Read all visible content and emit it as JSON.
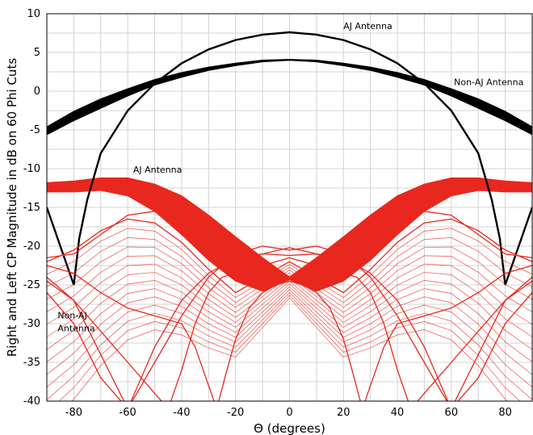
{
  "chart_data": {
    "type": "line",
    "title": "",
    "xlabel": "Θ (degrees)",
    "ylabel": "Right and Left CP Magnitude in dB on 60 Phi Cuts",
    "xlim": [
      -90,
      90
    ],
    "ylim": [
      -40,
      10
    ],
    "x_ticks": [
      "-80",
      "-60",
      "-40",
      "-20",
      "0",
      "20",
      "40",
      "60",
      "80"
    ],
    "x_tick_values": [
      -80,
      -60,
      -40,
      -20,
      0,
      20,
      40,
      60,
      80
    ],
    "y_ticks": [
      "10",
      "5",
      "0",
      "-5",
      "-10",
      "-15",
      "-20",
      "-25",
      "-30",
      "-35",
      "-40"
    ],
    "y_tick_values": [
      10,
      5,
      0,
      -5,
      -10,
      -15,
      -20,
      -25,
      -30,
      -35,
      -40
    ],
    "grid": true,
    "colors": {
      "rhcp": "#000000",
      "lhcp": "#e8281e"
    },
    "annotations": [
      {
        "text": "AJ Antenna",
        "x": 20,
        "y": 8
      },
      {
        "text": "Non-AJ Antenna",
        "x": 61,
        "y": 0.8
      },
      {
        "text": "AJ Antenna",
        "x": -58,
        "y": -10.5
      },
      {
        "text": "Non-AJ",
        "x": -86,
        "y": -29.3
      },
      {
        "text": "Antenna",
        "x": -86,
        "y": -31
      }
    ],
    "series": [
      {
        "x": [
          -90,
          -80,
          -70,
          -60,
          -50,
          -40,
          -30,
          -20,
          -10,
          0,
          10,
          20,
          30,
          40,
          50,
          60,
          70,
          80,
          90
        ],
        "y_upper": [
          -4.6,
          -2.6,
          -1.0,
          0.3,
          1.5,
          2.4,
          3.1,
          3.6,
          4.0,
          4.1,
          4.0,
          3.6,
          3.1,
          2.4,
          1.5,
          0.3,
          -1.0,
          -2.6,
          -4.6
        ],
        "y_lower": [
          -5.6,
          -3.8,
          -2.2,
          -0.6,
          0.8,
          1.8,
          2.7,
          3.3,
          3.8,
          4.0,
          3.8,
          3.3,
          2.7,
          1.8,
          0.8,
          -0.6,
          -2.2,
          -3.8,
          -5.6
        ]
      },
      {
        "x": [
          -90,
          -85,
          -80,
          -78,
          -75,
          -70,
          -60,
          -50,
          -40,
          -30,
          -20,
          -10,
          0,
          10,
          20,
          30,
          40,
          50,
          60,
          70,
          75,
          78,
          80,
          85,
          90
        ],
        "y": [
          -15,
          -20,
          -25,
          -19,
          -14,
          -8,
          -2.5,
          1.0,
          3.6,
          5.4,
          6.6,
          7.3,
          7.6,
          7.3,
          6.6,
          5.4,
          3.6,
          1.0,
          -2.5,
          -8,
          -14,
          -19,
          -25,
          -20,
          -15
        ]
      },
      {
        "x": [
          -90,
          -80,
          -70,
          -60,
          -50,
          -40,
          -30,
          -20,
          -10,
          0,
          10,
          20,
          30,
          40,
          50,
          60,
          70,
          80,
          90
        ],
        "y_upper": [
          -11.8,
          -11.6,
          -11.2,
          -11.2,
          -12.0,
          -13.5,
          -16.0,
          -18.8,
          -21.5,
          -24.0,
          -21.5,
          -18.8,
          -16.0,
          -13.5,
          -12.0,
          -11.2,
          -11.2,
          -11.6,
          -11.8
        ],
        "y_lower": [
          -13.0,
          -13.0,
          -12.8,
          -13.5,
          -15.5,
          -18.5,
          -21.8,
          -24.5,
          -25.8,
          -24.3,
          -25.8,
          -24.5,
          -21.8,
          -18.5,
          -15.5,
          -13.5,
          -12.8,
          -13.0,
          -13.0
        ]
      },
      {
        "x": [
          -90,
          -80,
          -70,
          -60,
          -50,
          -40,
          -30,
          -20,
          -10,
          0,
          10,
          20,
          30,
          40,
          50,
          60,
          70,
          80,
          90
        ],
        "y": [
          -21.5,
          -21.0,
          -18.5,
          -16.0,
          -15.5,
          -17.5,
          -20.5,
          -22.0,
          -21.0,
          -20.2,
          -21.0,
          -22.0,
          -20.5,
          -17.5,
          -15.5,
          -16.0,
          -18.5,
          -21.0,
          -21.5
        ]
      },
      {
        "x": [
          -90,
          -80,
          -70,
          -60,
          -50,
          -45,
          -40,
          -35,
          -30,
          -25,
          -20,
          -10,
          0,
          10,
          20,
          25,
          30,
          35,
          40,
          45,
          50,
          60,
          70,
          80,
          90
        ],
        "y": [
          -24.5,
          -27.0,
          -31.0,
          -35.0,
          -39.0,
          -41.0,
          -36.0,
          -30.0,
          -26.0,
          -24.0,
          -23.5,
          -22.5,
          -21.5,
          -22.5,
          -23.5,
          -24.0,
          -26.0,
          -30.0,
          -36.0,
          -41.0,
          -39.0,
          -35.0,
          -31.0,
          -27.0,
          -24.5
        ]
      },
      {
        "x": [
          -90,
          -80,
          -70,
          -60,
          -50,
          -40,
          -35,
          -30,
          -27,
          -24,
          -20,
          -15,
          -10,
          -5,
          0,
          5,
          10,
          15,
          20,
          24,
          27,
          30,
          35,
          40,
          50,
          60,
          70,
          80,
          90
        ],
        "y": [
          -22.5,
          -23.5,
          -26.0,
          -28.0,
          -29.0,
          -30.0,
          -33.0,
          -38.0,
          -41.0,
          -37.0,
          -32.0,
          -28.0,
          -26.0,
          -25.0,
          -24.5,
          -25.0,
          -26.0,
          -28.0,
          -32.0,
          -37.0,
          -41.0,
          -38.0,
          -33.0,
          -30.0,
          -29.0,
          -28.0,
          -26.0,
          -23.5,
          -22.5
        ]
      },
      {
        "x": [
          -90,
          -80,
          -70,
          -60,
          -50,
          -40,
          -30,
          -20,
          -10,
          0,
          10,
          20,
          30,
          40,
          50,
          60,
          70,
          80,
          90
        ],
        "y": [
          -26.0,
          -30.0,
          -37.0,
          -41.0,
          -35.0,
          -29.0,
          -24.0,
          -21.0,
          -20.0,
          -20.5,
          -20.0,
          -21.0,
          -24.0,
          -29.0,
          -35.0,
          -41.0,
          -37.0,
          -30.0,
          -26.0
        ]
      },
      {
        "x": [
          -90,
          -80,
          -70,
          -60,
          -50,
          -40,
          -30,
          -20,
          -10,
          0,
          10,
          20,
          30,
          40,
          50,
          60,
          70,
          80,
          90
        ],
        "y": [
          -22.0,
          -20.5,
          -18.0,
          -16.5,
          -17.0,
          -19.5,
          -23.0,
          -26.0,
          -24.0,
          -22.0,
          -24.0,
          -26.0,
          -23.0,
          -19.5,
          -17.0,
          -16.5,
          -18.0,
          -20.5,
          -22.0
        ]
      },
      {
        "x": [
          -90,
          -80,
          -70,
          -60,
          -50,
          -40,
          -30,
          -20,
          -10,
          0,
          10,
          20,
          30,
          40,
          50,
          60,
          70,
          80,
          90
        ],
        "y": [
          -24.0,
          -27.0,
          -34.0,
          -41.0,
          -33.0,
          -27.0,
          -23.5,
          -21.5,
          -21.0,
          -21.2,
          -21.0,
          -21.5,
          -23.5,
          -27.0,
          -33.0,
          -41.0,
          -34.0,
          -27.0,
          -24.0
        ]
      }
    ]
  }
}
